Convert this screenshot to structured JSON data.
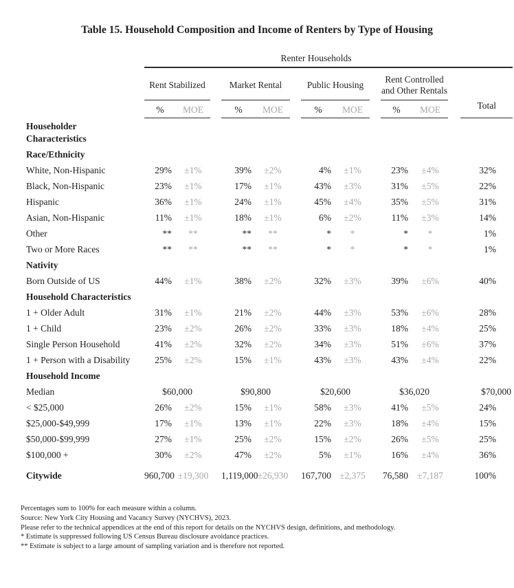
{
  "title": "Table 15. Household Composition and Income of Renters by Type of Housing",
  "colors": {
    "text": "#1f1f1f",
    "moe_gray": "#a6a6a6",
    "rule": "#2c2c2c",
    "background": "#ffffff"
  },
  "table": {
    "span_header": "Renter Households",
    "groups": [
      "Rent Stabilized",
      "Market Rental",
      "Public Housing",
      "Rent Controlled and Other Rentals"
    ],
    "col_pct": "%",
    "col_moe": "MOE",
    "col_total": "Total",
    "sections": [
      {
        "heading": "Householder Characteristics",
        "rows": []
      },
      {
        "heading": "Race/Ethnicity",
        "rows": [
          {
            "label": "White, Non-Hispanic",
            "values": [
              "29%",
              "±1%",
              "39%",
              "±2%",
              "4%",
              "±1%",
              "23%",
              "±4%"
            ],
            "total": "32%"
          },
          {
            "label": "Black, Non-Hispanic",
            "values": [
              "23%",
              "±1%",
              "17%",
              "±1%",
              "43%",
              "±3%",
              "31%",
              "±5%"
            ],
            "total": "22%"
          },
          {
            "label": "Hispanic",
            "values": [
              "36%",
              "±1%",
              "24%",
              "±1%",
              "45%",
              "±4%",
              "35%",
              "±5%"
            ],
            "total": "31%"
          },
          {
            "label": "Asian, Non-Hispanic",
            "values": [
              "11%",
              "±1%",
              "18%",
              "±1%",
              "6%",
              "±2%",
              "11%",
              "±3%"
            ],
            "total": "14%"
          },
          {
            "label": "Other",
            "values": [
              "**",
              "**",
              "**",
              "**",
              "*",
              "*",
              "*",
              "*"
            ],
            "total": "1%"
          },
          {
            "label": "Two or More Races",
            "values": [
              "**",
              "**",
              "**",
              "**",
              "*",
              "*",
              "*",
              "*"
            ],
            "total": "1%"
          }
        ]
      },
      {
        "heading": "Nativity",
        "rows": [
          {
            "label": "Born Outside of US",
            "values": [
              "44%",
              "±1%",
              "38%",
              "±2%",
              "32%",
              "±3%",
              "39%",
              "±6%"
            ],
            "total": "40%"
          }
        ]
      },
      {
        "heading": "Household Characteristics",
        "rows": [
          {
            "label": "1 + Older Adult",
            "values": [
              "31%",
              "±1%",
              "21%",
              "±2%",
              "44%",
              "±3%",
              "53%",
              "±6%"
            ],
            "total": "28%"
          },
          {
            "label": "1 + Child",
            "values": [
              "23%",
              "±2%",
              "26%",
              "±2%",
              "33%",
              "±3%",
              "18%",
              "±4%"
            ],
            "total": "25%"
          },
          {
            "label": "Single Person Household",
            "values": [
              "41%",
              "±2%",
              "32%",
              "±2%",
              "34%",
              "±3%",
              "51%",
              "±6%"
            ],
            "total": "37%"
          },
          {
            "label": "1 + Person with a Disability",
            "values": [
              "25%",
              "±2%",
              "15%",
              "±1%",
              "43%",
              "±3%",
              "43%",
              "±4%"
            ],
            "total": "22%"
          }
        ]
      },
      {
        "heading": "Household Income",
        "rows": [
          {
            "label": "Median",
            "type": "span",
            "values": [
              "$60,000",
              "$90,800",
              "$20,600",
              "$36,020"
            ],
            "total": "$70,000"
          },
          {
            "label": "< $25,000",
            "values": [
              "26%",
              "±2%",
              "15%",
              "±1%",
              "58%",
              "±3%",
              "41%",
              "±5%"
            ],
            "total": "24%"
          },
          {
            "label": "$25,000-$49,999",
            "values": [
              "17%",
              "±1%",
              "13%",
              "±1%",
              "22%",
              "±3%",
              "18%",
              "±4%"
            ],
            "total": "15%"
          },
          {
            "label": "$50,000-$99,999",
            "values": [
              "27%",
              "±1%",
              "25%",
              "±2%",
              "15%",
              "±2%",
              "26%",
              "±5%"
            ],
            "total": "25%"
          },
          {
            "label": "$100,000 +",
            "values": [
              "30%",
              "±2%",
              "47%",
              "±2%",
              "5%",
              "±1%",
              "16%",
              "±4%"
            ],
            "total": "36%"
          }
        ]
      }
    ],
    "citywide": {
      "label": "Citywide",
      "values": [
        "960,700",
        "±19,300",
        "1,119,000",
        "±26,930",
        "167,700",
        "±2,375",
        "76,580",
        "±7,187"
      ],
      "total": "100%"
    }
  },
  "footnotes": [
    "Percentages sum to 100% for each measure within a column.",
    "Source: New York City Housing and Vacancy Survey (NYCHVS), 2023.",
    "Please refer to the technical appendices at the end of this report for details on the NYCHVS design, definitions, and methodology.",
    "* Estimate is suppressed following US Census Bureau disclosure avoidance practices.",
    "** Estimate is subject to a large amount of sampling variation and is therefore not reported."
  ]
}
